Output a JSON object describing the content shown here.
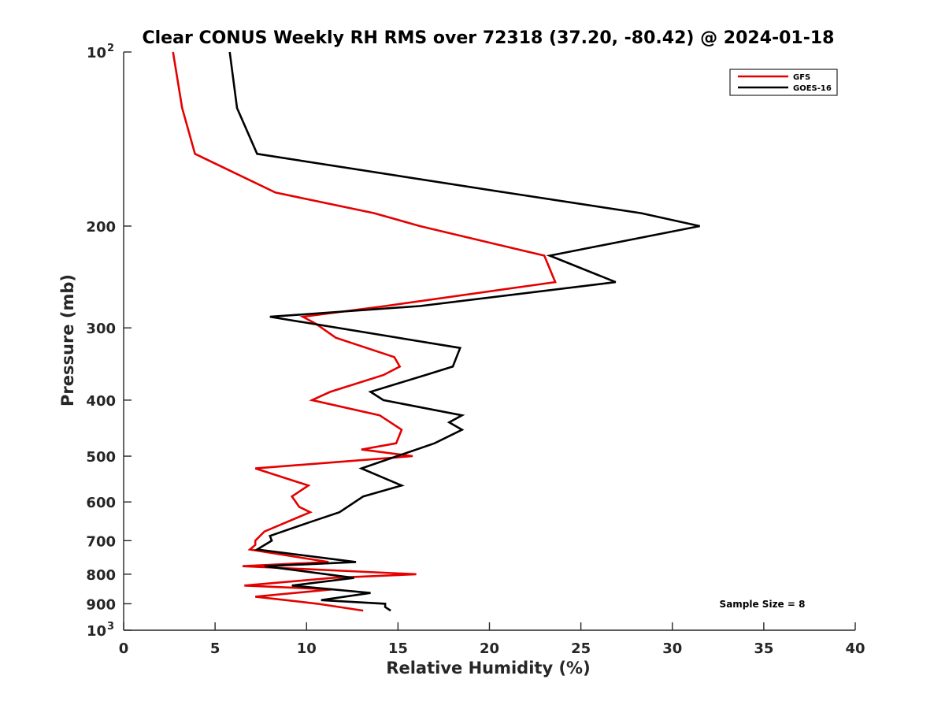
{
  "chart_data": {
    "type": "line",
    "title": "Clear CONUS Weekly RH RMS over 72318 (37.20, -80.42) @ 2024-01-18",
    "xlabel": "Relative Humidity (%)",
    "ylabel": "Pressure (mb)",
    "xlim": [
      0,
      40
    ],
    "ylim": [
      100,
      1000
    ],
    "yscale": "log",
    "yreversed": true,
    "grid": false,
    "legend_position": "top-right",
    "x_ticks": [
      0,
      5,
      10,
      15,
      20,
      25,
      30,
      35,
      40
    ],
    "y_ticks": [
      {
        "value": 100,
        "base": "10",
        "exp": "2"
      },
      {
        "value": 200,
        "label": "200"
      },
      {
        "value": 300,
        "label": "300"
      },
      {
        "value": 400,
        "label": "400"
      },
      {
        "value": 500,
        "label": "500"
      },
      {
        "value": 600,
        "label": "600"
      },
      {
        "value": 700,
        "label": "700"
      },
      {
        "value": 800,
        "label": "800"
      },
      {
        "value": 900,
        "label": "900"
      },
      {
        "value": 1000,
        "base": "10",
        "exp": "3"
      }
    ],
    "annotation": "Sample Size = 8",
    "series": [
      {
        "name": "GFS",
        "color": "#e50000",
        "points": [
          [
            2.7,
            100
          ],
          [
            3.2,
            125
          ],
          [
            3.9,
            150
          ],
          [
            8.3,
            175
          ],
          [
            13.7,
            190
          ],
          [
            16.2,
            200
          ],
          [
            23.0,
            225
          ],
          [
            23.6,
            250
          ],
          [
            14.3,
            275
          ],
          [
            9.8,
            287
          ],
          [
            10.5,
            295
          ],
          [
            11.6,
            312
          ],
          [
            14.8,
            337
          ],
          [
            15.1,
            350
          ],
          [
            14.2,
            362
          ],
          [
            11.3,
            387
          ],
          [
            10.3,
            400
          ],
          [
            14.0,
            425
          ],
          [
            15.2,
            450
          ],
          [
            14.9,
            475
          ],
          [
            13.0,
            487
          ],
          [
            15.8,
            500
          ],
          [
            7.2,
            525
          ],
          [
            10.1,
            562
          ],
          [
            9.2,
            587
          ],
          [
            9.6,
            612
          ],
          [
            10.2,
            625
          ],
          [
            7.7,
            675
          ],
          [
            7.2,
            700
          ],
          [
            7.2,
            712
          ],
          [
            6.9,
            725
          ],
          [
            11.2,
            762
          ],
          [
            6.5,
            775
          ],
          [
            16.0,
            800
          ],
          [
            11.4,
            812
          ],
          [
            6.6,
            837
          ],
          [
            11.4,
            850
          ],
          [
            7.2,
            875
          ],
          [
            10.6,
            900
          ],
          [
            13.1,
            925
          ]
        ]
      },
      {
        "name": "GOES-16",
        "color": "#000000",
        "points": [
          [
            5.8,
            100
          ],
          [
            6.2,
            125
          ],
          [
            7.3,
            150
          ],
          [
            20.9,
            175
          ],
          [
            28.3,
            190
          ],
          [
            31.5,
            200
          ],
          [
            23.3,
            225
          ],
          [
            26.9,
            250
          ],
          [
            16.2,
            275
          ],
          [
            8.0,
            287
          ],
          [
            18.4,
            325
          ],
          [
            18.0,
            350
          ],
          [
            16.5,
            362
          ],
          [
            13.5,
            387
          ],
          [
            14.2,
            400
          ],
          [
            18.5,
            425
          ],
          [
            17.8,
            437
          ],
          [
            18.5,
            450
          ],
          [
            17.0,
            475
          ],
          [
            13.0,
            525
          ],
          [
            15.2,
            562
          ],
          [
            13.1,
            587
          ],
          [
            11.8,
            625
          ],
          [
            10.2,
            650
          ],
          [
            8.0,
            687
          ],
          [
            8.1,
            700
          ],
          [
            7.3,
            725
          ],
          [
            12.7,
            762
          ],
          [
            7.7,
            775
          ],
          [
            12.6,
            812
          ],
          [
            9.2,
            837
          ],
          [
            13.5,
            862
          ],
          [
            10.8,
            887
          ],
          [
            14.3,
            900
          ],
          [
            14.3,
            912
          ],
          [
            14.6,
            925
          ]
        ]
      }
    ]
  }
}
